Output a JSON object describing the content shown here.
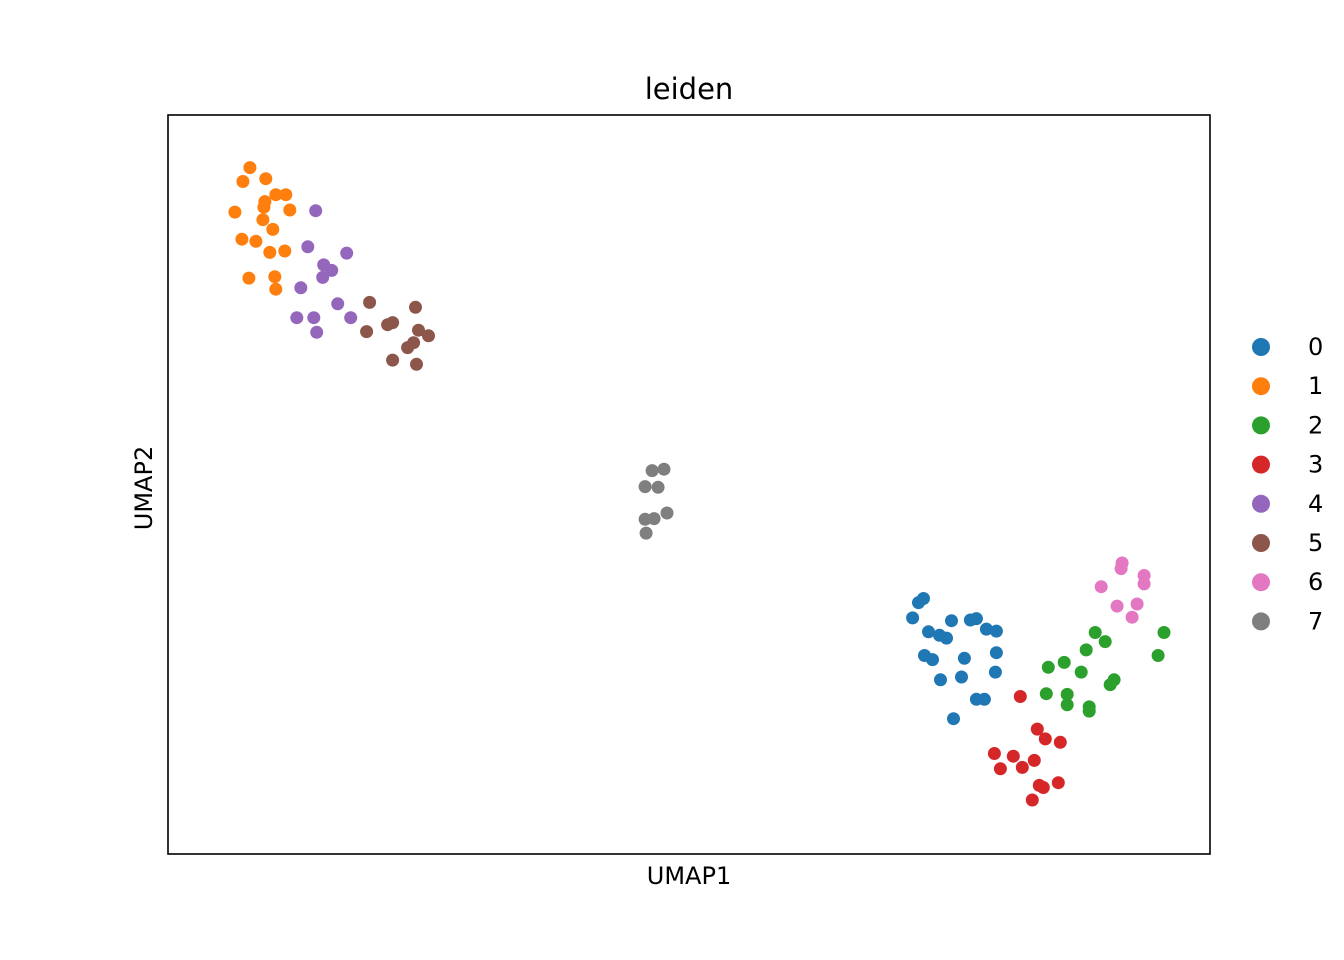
{
  "chart_data": {
    "type": "scatter",
    "title": "leiden",
    "xlabel": "UMAP1",
    "ylabel": "UMAP2",
    "xlim": [
      0,
      100
    ],
    "ylim": [
      0,
      100
    ],
    "grid": false,
    "legend_position": "right",
    "series": [
      {
        "name": "0",
        "color": "#1f77b4",
        "points": [
          [
            72.4,
            30.8
          ],
          [
            73.5,
            33.6
          ],
          [
            73.0,
            33.0
          ],
          [
            74.0,
            28.8
          ],
          [
            75.1,
            28.3
          ],
          [
            76.3,
            30.4
          ],
          [
            75.8,
            27.9
          ],
          [
            78.2,
            30.5
          ],
          [
            77.6,
            25.0
          ],
          [
            78.8,
            30.7
          ],
          [
            79.8,
            29.2
          ],
          [
            80.8,
            28.9
          ],
          [
            73.6,
            25.4
          ],
          [
            74.4,
            24.8
          ],
          [
            75.2,
            21.9
          ],
          [
            77.3,
            22.3
          ],
          [
            80.8,
            25.8
          ],
          [
            80.7,
            23.0
          ],
          [
            78.8,
            19.1
          ],
          [
            76.5,
            16.3
          ],
          [
            79.6,
            19.1
          ]
        ]
      },
      {
        "name": "1",
        "color": "#ff7f0e",
        "points": [
          [
            6.0,
            95.6
          ],
          [
            5.3,
            93.6
          ],
          [
            7.6,
            94.0
          ],
          [
            8.6,
            91.7
          ],
          [
            9.6,
            91.7
          ],
          [
            7.5,
            90.7
          ],
          [
            7.4,
            89.9
          ],
          [
            4.5,
            89.2
          ],
          [
            10.0,
            89.5
          ],
          [
            7.3,
            88.1
          ],
          [
            8.3,
            86.7
          ],
          [
            5.2,
            85.3
          ],
          [
            6.6,
            85.0
          ],
          [
            8.0,
            83.4
          ],
          [
            9.5,
            83.6
          ],
          [
            5.9,
            79.7
          ],
          [
            8.5,
            79.9
          ],
          [
            8.6,
            78.1
          ]
        ]
      },
      {
        "name": "2",
        "color": "#2ca02c",
        "points": [
          [
            90.7,
            28.7
          ],
          [
            91.7,
            27.4
          ],
          [
            97.6,
            28.7
          ],
          [
            89.8,
            26.2
          ],
          [
            97.0,
            25.4
          ],
          [
            87.6,
            24.4
          ],
          [
            86.0,
            23.7
          ],
          [
            89.3,
            23.0
          ],
          [
            92.6,
            21.9
          ],
          [
            92.2,
            21.2
          ],
          [
            85.8,
            19.9
          ],
          [
            87.9,
            19.8
          ],
          [
            87.9,
            18.3
          ],
          [
            90.1,
            18.0
          ],
          [
            90.1,
            17.4
          ]
        ]
      },
      {
        "name": "3",
        "color": "#d62728",
        "points": [
          [
            83.2,
            19.5
          ],
          [
            84.9,
            14.8
          ],
          [
            85.7,
            13.4
          ],
          [
            87.2,
            12.9
          ],
          [
            80.6,
            11.3
          ],
          [
            82.5,
            10.9
          ],
          [
            84.6,
            10.3
          ],
          [
            81.2,
            9.1
          ],
          [
            83.4,
            9.3
          ],
          [
            85.1,
            6.7
          ],
          [
            85.5,
            6.4
          ],
          [
            87.0,
            7.1
          ],
          [
            84.4,
            4.6
          ]
        ]
      },
      {
        "name": "4",
        "color": "#9467bd",
        "points": [
          [
            12.6,
            89.4
          ],
          [
            11.8,
            84.2
          ],
          [
            15.7,
            83.3
          ],
          [
            13.3,
            79.8
          ],
          [
            13.4,
            81.6
          ],
          [
            14.2,
            80.8
          ],
          [
            11.1,
            78.3
          ],
          [
            14.8,
            76.0
          ],
          [
            10.7,
            74.0
          ],
          [
            12.4,
            74.0
          ],
          [
            16.1,
            74.0
          ],
          [
            12.7,
            71.9
          ]
        ]
      },
      {
        "name": "5",
        "color": "#8c564b",
        "points": [
          [
            18.0,
            76.2
          ],
          [
            22.6,
            75.5
          ],
          [
            20.3,
            73.3
          ],
          [
            19.8,
            73.0
          ],
          [
            22.9,
            72.2
          ],
          [
            17.7,
            72.0
          ],
          [
            23.9,
            71.4
          ],
          [
            22.4,
            70.4
          ],
          [
            21.8,
            69.7
          ],
          [
            20.3,
            67.9
          ],
          [
            22.7,
            67.3
          ]
        ]
      },
      {
        "name": "6",
        "color": "#e377c2",
        "points": [
          [
            93.4,
            38.7
          ],
          [
            93.3,
            37.9
          ],
          [
            95.6,
            36.9
          ],
          [
            95.6,
            35.7
          ],
          [
            91.3,
            35.3
          ],
          [
            94.9,
            32.8
          ],
          [
            92.9,
            32.5
          ],
          [
            94.4,
            30.9
          ]
        ]
      },
      {
        "name": "7",
        "color": "#7f7f7f",
        "points": [
          [
            46.3,
            52.0
          ],
          [
            47.5,
            52.2
          ],
          [
            45.6,
            49.7
          ],
          [
            46.9,
            49.6
          ],
          [
            47.8,
            45.9
          ],
          [
            45.6,
            45.0
          ],
          [
            46.5,
            45.1
          ],
          [
            45.7,
            43.0
          ]
        ]
      }
    ]
  }
}
